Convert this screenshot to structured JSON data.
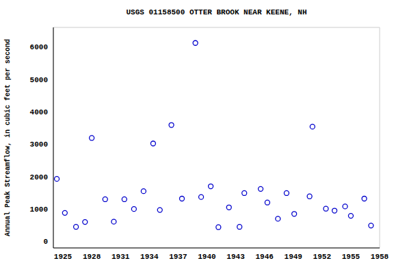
{
  "chart_data": {
    "type": "scatter",
    "title": "USGS 01158500 OTTER BROOK NEAR KEENE, NH",
    "y_label": "Annual Peak Streamflow, in cubic feet per second",
    "x": [
      1924.36,
      1925.2,
      1926.36,
      1927.3,
      1928.0,
      1929.4,
      1930.3,
      1931.4,
      1932.4,
      1933.4,
      1934.4,
      1935.1,
      1936.3,
      1937.4,
      1938.8,
      1939.4,
      1940.4,
      1941.2,
      1942.3,
      1943.4,
      1943.9,
      1945.6,
      1946.3,
      1947.4,
      1948.3,
      1949.1,
      1950.7,
      1951.0,
      1952.4,
      1953.3,
      1954.4,
      1955.0,
      1956.4,
      1957.1
    ],
    "values": [
      1930,
      880,
      450,
      600,
      3190,
      1300,
      610,
      1300,
      1000,
      1550,
      3020,
      970,
      3590,
      1320,
      6120,
      1370,
      1700,
      440,
      1050,
      450,
      1490,
      1620,
      1200,
      700,
      1490,
      850,
      1390,
      3540,
      1010,
      950,
      1080,
      790,
      1320,
      490
    ],
    "color": "#0000cc",
    "marker": "open_circle",
    "xlim": [
      1924,
      1958
    ],
    "xticks": [
      1925,
      1928,
      1931,
      1934,
      1937,
      1940,
      1943,
      1946,
      1949,
      1952,
      1955,
      1958
    ],
    "ylim": [
      -200,
      6600
    ],
    "yticks": [
      0,
      1000,
      2000,
      3000,
      4000,
      5000,
      6000
    ],
    "grid": true
  }
}
